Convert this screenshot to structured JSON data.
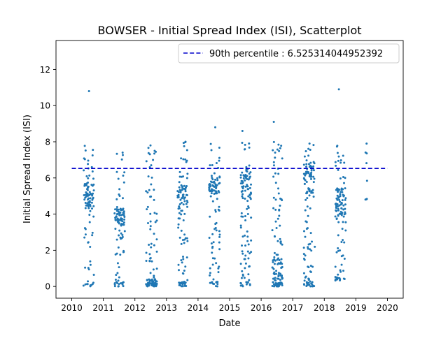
{
  "chart_data": {
    "type": "scatter",
    "title": "BOWSER - Initial Spread Index (ISI), Scatterplot",
    "xlabel": "Date",
    "ylabel": "Initial Spread Index (ISI)",
    "xlim": [
      2009.5,
      2020.5
    ],
    "ylim": [
      -0.65,
      13.6
    ],
    "xticks": [
      2010,
      2011,
      2012,
      2013,
      2014,
      2015,
      2016,
      2017,
      2018,
      2019,
      2020
    ],
    "yticks": [
      0,
      2,
      4,
      6,
      8,
      10,
      12
    ],
    "grid": false,
    "legend": {
      "position": "top-right",
      "entries": [
        "90th percentile : 6.525314044952392"
      ]
    },
    "reference_line": {
      "label": "90th percentile : 6.525314044952392",
      "y": 6.525314044952392,
      "x_range": [
        2010,
        2020
      ],
      "style": "dashed",
      "color": "#0000cc"
    },
    "marker_color": "#1f77b4",
    "seasons": [
      {
        "year": 2010,
        "x_range": [
          2010.37,
          2010.7
        ],
        "y_range": [
          0,
          10.8
        ],
        "dense_band": [
          4.3,
          5.7
        ],
        "n": 105
      },
      {
        "year": 2011,
        "x_range": [
          2011.35,
          2011.68
        ],
        "y_range": [
          0,
          7.4
        ],
        "dense_band": [
          3.4,
          4.3
        ],
        "n": 110
      },
      {
        "year": 2012,
        "x_range": [
          2012.35,
          2012.7
        ],
        "y_range": [
          0,
          7.8
        ],
        "dense_band": [
          0,
          0.4
        ],
        "n": 105
      },
      {
        "year": 2013,
        "x_range": [
          2013.35,
          2013.67
        ],
        "y_range": [
          0,
          8.0
        ],
        "dense_band": [
          4.0,
          5.6
        ],
        "n": 110
      },
      {
        "year": 2014,
        "x_range": [
          2014.35,
          2014.7
        ],
        "y_range": [
          0,
          8.8
        ],
        "dense_band": [
          5.0,
          6.2
        ],
        "n": 110
      },
      {
        "year": 2015,
        "x_range": [
          2015.35,
          2015.68
        ],
        "y_range": [
          0,
          8.6
        ],
        "dense_band": [
          4.8,
          6.5
        ],
        "n": 115
      },
      {
        "year": 2016,
        "x_range": [
          2016.35,
          2016.68
        ],
        "y_range": [
          0,
          9.1
        ],
        "dense_band": [
          0,
          1.5
        ],
        "n": 120
      },
      {
        "year": 2017,
        "x_range": [
          2017.35,
          2017.7
        ],
        "y_range": [
          0,
          7.9
        ],
        "dense_band": [
          4.9,
          7.0
        ],
        "n": 125
      },
      {
        "year": 2018,
        "x_range": [
          2018.35,
          2018.68
        ],
        "y_range": [
          0.3,
          10.9
        ],
        "dense_band": [
          3.8,
          5.5
        ],
        "n": 120
      },
      {
        "year": 2019,
        "x_range": [
          2019.3,
          2019.36
        ],
        "y_range": [
          4.7,
          7.9
        ],
        "dense_band": [
          5.5,
          6.6
        ],
        "n": 8
      }
    ]
  }
}
